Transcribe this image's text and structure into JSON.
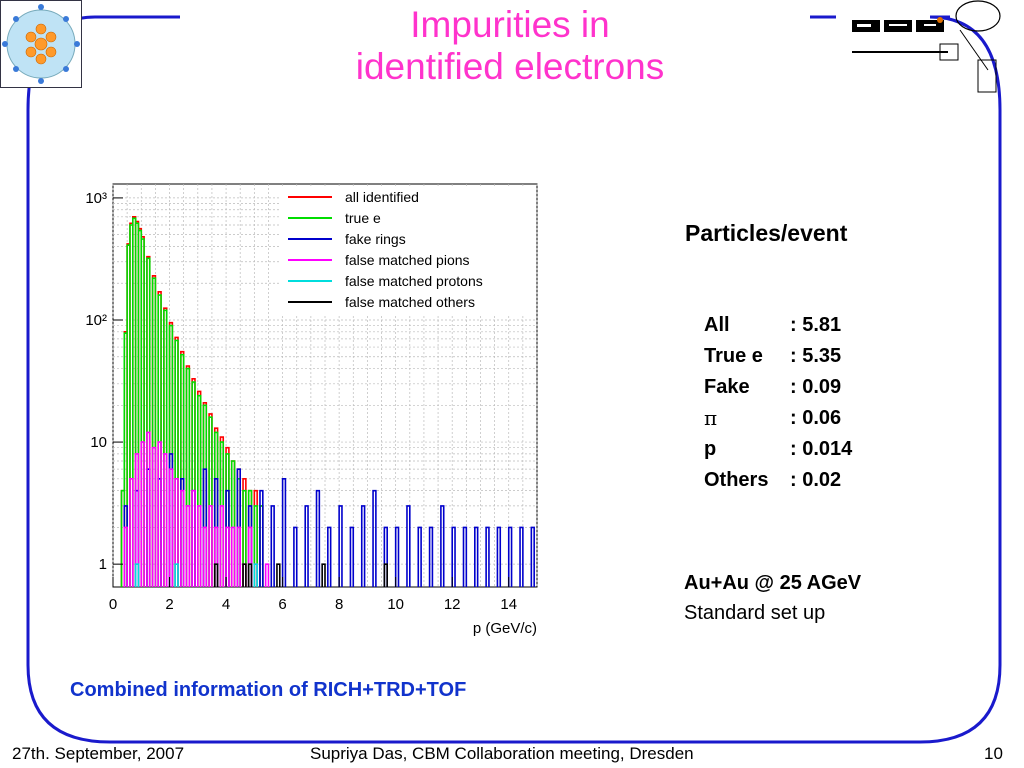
{
  "slide": {
    "title_line1": "Impurities in",
    "title_line2": "identified electrons",
    "side_heading": "Particles/event",
    "stats": [
      {
        "label": "All",
        "value": ": 5.81"
      },
      {
        "label": "True e",
        "value": ": 5.35"
      },
      {
        "label": "Fake",
        "value": ": 0.09"
      },
      {
        "label": "π",
        "value": ": 0.06"
      },
      {
        "label": "p",
        "value": ": 0.014"
      },
      {
        "label": "Others",
        "value": ": 0.02"
      }
    ],
    "setup_line1": "Au+Au @ 25 AGeV",
    "setup_line2": "Standard set up",
    "caption": "Combined information of RICH+TRD+TOF",
    "footer_date": "27th. September, 2007",
    "footer_center": "Supriya Das, CBM Collaboration meeting, Dresden",
    "footer_page": "10",
    "frame_color": "#1a1acc",
    "title_color": "#ff33cc"
  },
  "chart_data": {
    "type": "line",
    "subtype": "step-histogram",
    "title": "",
    "xlabel": "p (GeV/c)",
    "ylabel": "",
    "xlim": [
      0,
      15
    ],
    "ylim": [
      0.65,
      1300
    ],
    "yscale": "log",
    "xticks": [
      0,
      2,
      4,
      6,
      8,
      10,
      12,
      14
    ],
    "yticks": [
      {
        "value": 1,
        "label": "1"
      },
      {
        "value": 10,
        "label": "10"
      },
      {
        "value": 100,
        "label": "10²"
      },
      {
        "value": 1000,
        "label": "10³"
      }
    ],
    "grid": true,
    "legend_position": "top-right",
    "bin_width": 0.1,
    "series": [
      {
        "name": "all identified",
        "color": "#ff0000",
        "x": [
          0.3,
          0.4,
          0.5,
          0.6,
          0.7,
          0.8,
          0.9,
          1.0,
          1.2,
          1.4,
          1.6,
          1.8,
          2.0,
          2.2,
          2.4,
          2.6,
          2.8,
          3.0,
          3.2,
          3.4,
          3.6,
          3.8,
          4.0,
          4.2,
          4.4,
          4.6,
          4.8,
          5.0,
          5.2
        ],
        "y": [
          4,
          80,
          420,
          620,
          700,
          640,
          560,
          480,
          330,
          230,
          170,
          125,
          95,
          72,
          55,
          42,
          33,
          26,
          21,
          17,
          13,
          11,
          9,
          7,
          6,
          5,
          4,
          4,
          3
        ]
      },
      {
        "name": "true e",
        "color": "#00dd00",
        "x": [
          0.3,
          0.4,
          0.5,
          0.6,
          0.7,
          0.8,
          0.9,
          1.0,
          1.2,
          1.4,
          1.6,
          1.8,
          2.0,
          2.2,
          2.4,
          2.6,
          2.8,
          3.0,
          3.2,
          3.4,
          3.6,
          3.8,
          4.0,
          4.2,
          4.4,
          4.6,
          4.8,
          5.0,
          5.2
        ],
        "y": [
          4,
          78,
          410,
          600,
          680,
          620,
          540,
          460,
          320,
          220,
          160,
          120,
          90,
          68,
          52,
          40,
          31,
          24,
          20,
          16,
          12,
          10,
          8,
          7,
          5,
          4,
          4,
          3,
          3
        ]
      },
      {
        "name": "fake rings",
        "color": "#0000cc",
        "x": [
          0.4,
          0.8,
          1.2,
          1.6,
          2.0,
          2.4,
          2.8,
          3.2,
          3.6,
          4.0,
          4.4,
          4.8,
          5.2,
          5.6,
          6.0,
          6.4,
          6.8,
          7.2,
          7.6,
          8.0,
          8.4,
          8.8,
          9.2,
          9.6,
          10.0,
          10.4,
          10.8,
          11.2,
          11.6,
          12.0,
          12.4,
          12.8,
          13.2,
          13.6,
          14.0,
          14.4,
          14.8
        ],
        "y": [
          3,
          4,
          6,
          5,
          8,
          5,
          4,
          6,
          5,
          4,
          6,
          3,
          4,
          3,
          5,
          2,
          3,
          4,
          2,
          3,
          2,
          3,
          4,
          2,
          2,
          3,
          2,
          2,
          3,
          2,
          2,
          2,
          2,
          2,
          2,
          2,
          2
        ]
      },
      {
        "name": "false matched pions",
        "color": "#ff00ff",
        "x": [
          0.4,
          0.6,
          0.8,
          1.0,
          1.2,
          1.4,
          1.6,
          1.8,
          2.0,
          2.2,
          2.4,
          2.6,
          2.8,
          3.0,
          3.2,
          3.4,
          3.6,
          3.8,
          4.0,
          4.2,
          4.4,
          4.6,
          4.8,
          5.0,
          5.4
        ],
        "y": [
          2,
          5,
          8,
          10,
          12,
          9,
          10,
          8,
          6,
          5,
          4,
          3,
          4,
          3,
          2,
          3,
          2,
          3,
          2,
          2,
          2,
          1,
          2,
          1,
          1
        ]
      },
      {
        "name": "false matched protons",
        "color": "#00dddd",
        "x": [
          0.8,
          2.2,
          5.0
        ],
        "y": [
          1,
          1,
          1
        ]
      },
      {
        "name": "false matched others",
        "color": "#000000",
        "x": [
          3.6,
          4.6,
          4.8,
          5.8,
          7.4,
          9.6
        ],
        "y": [
          1,
          1,
          1,
          1,
          1,
          1
        ]
      }
    ]
  }
}
